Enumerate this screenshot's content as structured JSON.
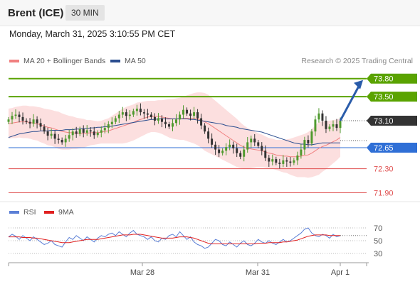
{
  "header": {
    "instrument": "Brent (ICE)",
    "timeframe": "30 MIN"
  },
  "datetime": "Monday, March 31, 2025 3:10:55 PM CET",
  "legend": {
    "ma20_label": "MA 20 + Bollinger Bands",
    "ma20_color": "#f08080",
    "ma50_label": "MA 50",
    "ma50_color": "#2a4d8f"
  },
  "credit": "Research © 2025 Trading Central",
  "rsi_legend": {
    "rsi_label": "RSI",
    "rsi_color": "#5b7fd6",
    "ma_label": "9MA",
    "ma_color": "#e02020"
  },
  "chart_data": [
    {
      "type": "candlestick",
      "title": "",
      "ylim": [
        71.8,
        73.95
      ],
      "current_price": 73.1,
      "levels": [
        {
          "value": 73.8,
          "label": "73.80",
          "kind": "resistance",
          "color": "#5aa300"
        },
        {
          "value": 73.5,
          "label": "73.50",
          "kind": "resistance",
          "color": "#5aa300"
        },
        {
          "value": 72.65,
          "label": "72.65",
          "kind": "pivot",
          "color": "#2f6fd6"
        },
        {
          "value": 72.3,
          "label": "72.30",
          "kind": "support",
          "color": "#e05050"
        },
        {
          "value": 71.9,
          "label": "71.90",
          "kind": "support",
          "color": "#e05050"
        }
      ],
      "price_label": "73.10",
      "x_ticks": [
        "Mar 28",
        "Mar 31",
        "Apr 1"
      ],
      "closes": [
        73.12,
        73.18,
        73.2,
        73.16,
        73.1,
        73.08,
        73.05,
        73.12,
        73.06,
        73.0,
        72.92,
        72.85,
        72.88,
        72.8,
        72.78,
        72.74,
        72.8,
        72.86,
        72.92,
        72.88,
        72.96,
        72.9,
        72.94,
        72.92,
        72.86,
        72.9,
        72.94,
        72.98,
        73.04,
        73.08,
        73.14,
        73.2,
        73.24,
        73.18,
        73.2,
        73.26,
        73.3,
        73.24,
        73.22,
        73.2,
        73.16,
        73.1,
        73.14,
        73.08,
        73.04,
        73.0,
        73.06,
        73.12,
        73.2,
        73.28,
        73.22,
        73.18,
        73.24,
        73.14,
        73.02,
        72.92,
        72.8,
        72.7,
        72.62,
        72.56,
        72.6,
        72.66,
        72.7,
        72.64,
        72.56,
        72.5,
        72.62,
        72.74,
        72.8,
        72.74,
        72.68,
        72.6,
        72.48,
        72.42,
        72.46,
        72.4,
        72.38,
        72.44,
        72.42,
        72.4,
        72.44,
        72.52,
        72.62,
        72.78,
        72.72,
        72.92,
        73.12,
        73.22,
        73.1,
        72.96,
        73.0,
        73.04,
        72.98,
        73.1
      ],
      "ma20": [
        73.05,
        73.06,
        73.07,
        73.08,
        73.08,
        73.08,
        73.07,
        73.06,
        73.05,
        73.03,
        73.01,
        72.99,
        72.98,
        72.96,
        72.94,
        72.92,
        72.91,
        72.9,
        72.9,
        72.89,
        72.89,
        72.89,
        72.89,
        72.9,
        72.9,
        72.9,
        72.91,
        72.92,
        72.93,
        72.95,
        72.97,
        72.99,
        73.01,
        73.03,
        73.05,
        73.07,
        73.1,
        73.12,
        73.14,
        73.16,
        73.17,
        73.17,
        73.17,
        73.16,
        73.15,
        73.14,
        73.13,
        73.13,
        73.13,
        73.14,
        73.14,
        73.14,
        73.14,
        73.13,
        73.11,
        73.08,
        73.05,
        73.01,
        72.97,
        72.93,
        72.89,
        72.85,
        72.81,
        72.77,
        72.73,
        72.69,
        72.66,
        72.64,
        72.63,
        72.62,
        72.61,
        72.6,
        72.58,
        72.56,
        72.55,
        72.53,
        72.52,
        72.51,
        72.51,
        72.5,
        72.5,
        72.5,
        72.51,
        72.52,
        72.53,
        72.56,
        72.6,
        72.64,
        72.67,
        72.69,
        72.72,
        72.75,
        72.78,
        72.82
      ],
      "ma50": [
        72.82,
        72.84,
        72.86,
        72.88,
        72.89,
        72.9,
        72.91,
        72.92,
        72.92,
        72.93,
        72.93,
        72.93,
        72.94,
        72.94,
        72.94,
        72.94,
        72.95,
        72.95,
        72.95,
        72.96,
        72.96,
        72.97,
        72.97,
        72.98,
        72.98,
        72.99,
        72.99,
        73.0,
        73.0,
        73.01,
        73.02,
        73.03,
        73.04,
        73.05,
        73.06,
        73.07,
        73.08,
        73.09,
        73.1,
        73.11,
        73.12,
        73.12,
        73.13,
        73.13,
        73.13,
        73.13,
        73.13,
        73.13,
        73.13,
        73.13,
        73.13,
        73.12,
        73.12,
        73.11,
        73.1,
        73.09,
        73.08,
        73.07,
        73.06,
        73.05,
        73.04,
        73.02,
        73.01,
        73.0,
        72.99,
        72.97,
        72.96,
        72.95,
        72.94,
        72.93,
        72.92,
        72.91,
        72.89,
        72.87,
        72.85,
        72.83,
        72.81,
        72.79,
        72.77,
        72.75,
        72.73,
        72.72,
        72.71,
        72.71,
        72.7,
        72.7,
        72.71,
        72.72,
        72.73,
        72.73,
        72.73,
        72.73,
        72.73,
        72.73
      ],
      "bb_width": [
        0.25,
        0.25,
        0.26,
        0.26,
        0.27,
        0.27,
        0.27,
        0.28,
        0.28,
        0.29,
        0.29,
        0.3,
        0.3,
        0.3,
        0.31,
        0.3,
        0.29,
        0.28,
        0.27,
        0.26,
        0.25,
        0.24,
        0.22,
        0.21,
        0.2,
        0.19,
        0.19,
        0.2,
        0.21,
        0.23,
        0.25,
        0.27,
        0.29,
        0.3,
        0.3,
        0.3,
        0.3,
        0.29,
        0.28,
        0.27,
        0.26,
        0.26,
        0.27,
        0.28,
        0.3,
        0.32,
        0.33,
        0.34,
        0.35,
        0.36,
        0.38,
        0.4,
        0.42,
        0.44,
        0.46,
        0.48,
        0.48,
        0.47,
        0.46,
        0.45,
        0.44,
        0.43,
        0.42,
        0.41,
        0.4,
        0.38,
        0.36,
        0.34,
        0.32,
        0.3,
        0.28,
        0.27,
        0.26,
        0.25,
        0.25,
        0.25,
        0.26,
        0.27,
        0.28,
        0.3,
        0.32,
        0.34,
        0.35,
        0.36,
        0.38,
        0.4,
        0.42,
        0.44,
        0.42,
        0.4,
        0.38,
        0.36,
        0.34,
        0.32
      ],
      "projection": {
        "from": 73.1,
        "to": 73.8
      }
    },
    {
      "type": "line",
      "title": "RSI",
      "ylim": [
        20,
        80
      ],
      "y_ticks": [
        70,
        50,
        30
      ],
      "series": [
        {
          "name": "RSI",
          "values": [
            56,
            60,
            57,
            52,
            58,
            54,
            50,
            56,
            52,
            48,
            44,
            46,
            50,
            44,
            42,
            40,
            48,
            55,
            52,
            58,
            54,
            50,
            56,
            52,
            48,
            54,
            58,
            56,
            60,
            62,
            58,
            64,
            60,
            56,
            62,
            66,
            60,
            58,
            56,
            52,
            56,
            50,
            48,
            54,
            52,
            58,
            60,
            56,
            64,
            58,
            52,
            56,
            48,
            44,
            42,
            38,
            40,
            46,
            52,
            50,
            44,
            42,
            48,
            44,
            40,
            46,
            50,
            44,
            42,
            46,
            52,
            48,
            46,
            50,
            46,
            44,
            48,
            52,
            48,
            50,
            54,
            58,
            62,
            68,
            70,
            62,
            58,
            56,
            60,
            58,
            54,
            60,
            56,
            58
          ]
        },
        {
          "name": "9MA",
          "values": [
            56,
            56,
            56,
            56,
            55,
            55,
            55,
            54,
            54,
            53,
            52,
            51,
            50,
            49,
            48,
            47,
            47,
            47,
            48,
            49,
            50,
            51,
            52,
            52,
            52,
            52,
            53,
            54,
            55,
            56,
            57,
            58,
            59,
            59,
            59,
            60,
            60,
            60,
            59,
            58,
            57,
            56,
            55,
            54,
            54,
            54,
            54,
            55,
            56,
            56,
            56,
            55,
            54,
            52,
            50,
            48,
            46,
            45,
            45,
            45,
            45,
            45,
            45,
            45,
            45,
            45,
            45,
            45,
            45,
            45,
            46,
            46,
            46,
            47,
            47,
            47,
            47,
            48,
            48,
            49,
            50,
            51,
            53,
            55,
            57,
            58,
            59,
            59,
            59,
            59,
            58,
            58,
            58,
            58
          ]
        }
      ],
      "x_ticks": [
        "Mar 28",
        "Mar 31",
        "Apr 1"
      ]
    }
  ]
}
